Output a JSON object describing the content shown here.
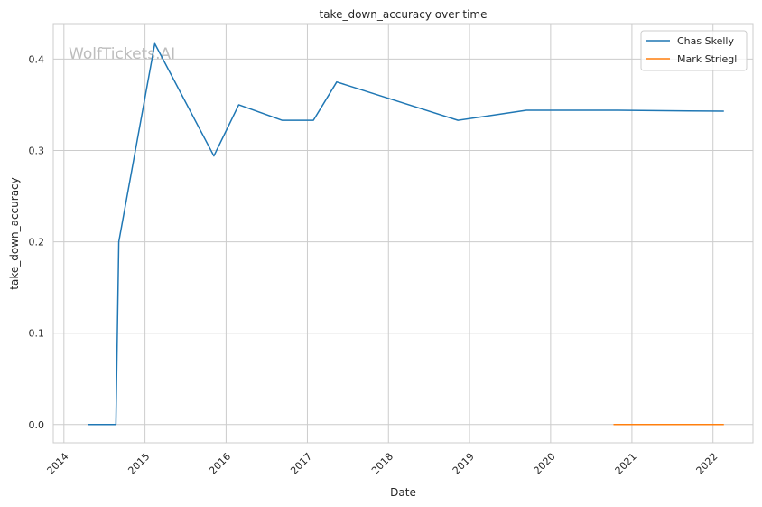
{
  "chart_data": {
    "type": "line",
    "title": "take_down_accuracy over time",
    "xlabel": "Date",
    "ylabel": "take_down_accuracy",
    "watermark": "WolfTickets.AI",
    "x_ticks": [
      "2014",
      "2015",
      "2016",
      "2017",
      "2018",
      "2019",
      "2020",
      "2021",
      "2022"
    ],
    "y_ticks": [
      "0.0",
      "0.1",
      "0.2",
      "0.3",
      "0.4"
    ],
    "xlim": [
      "2013-11-14",
      "2022-06-30"
    ],
    "ylim": [
      -0.02,
      0.438
    ],
    "grid": true,
    "legend_position": "top-right",
    "series": [
      {
        "name": "Chas Skelly",
        "color": "#1f77b4",
        "points": [
          [
            "2014-04-19",
            0.0
          ],
          [
            "2014-08-23",
            0.0
          ],
          [
            "2014-09-05",
            0.2
          ],
          [
            "2015-02-14",
            0.417
          ],
          [
            "2015-11-07",
            0.294
          ],
          [
            "2016-02-27",
            0.35
          ],
          [
            "2016-09-10",
            0.333
          ],
          [
            "2017-01-28",
            0.333
          ],
          [
            "2017-05-13",
            0.375
          ],
          [
            "2018-11-10",
            0.333
          ],
          [
            "2019-09-14",
            0.344
          ],
          [
            "2020-10-31",
            0.344
          ],
          [
            "2022-02-19",
            0.343
          ]
        ]
      },
      {
        "name": "Mark Striegl",
        "color": "#ff7f0e",
        "points": [
          [
            "2020-10-10",
            0.0
          ],
          [
            "2022-02-19",
            0.0
          ]
        ]
      }
    ]
  }
}
